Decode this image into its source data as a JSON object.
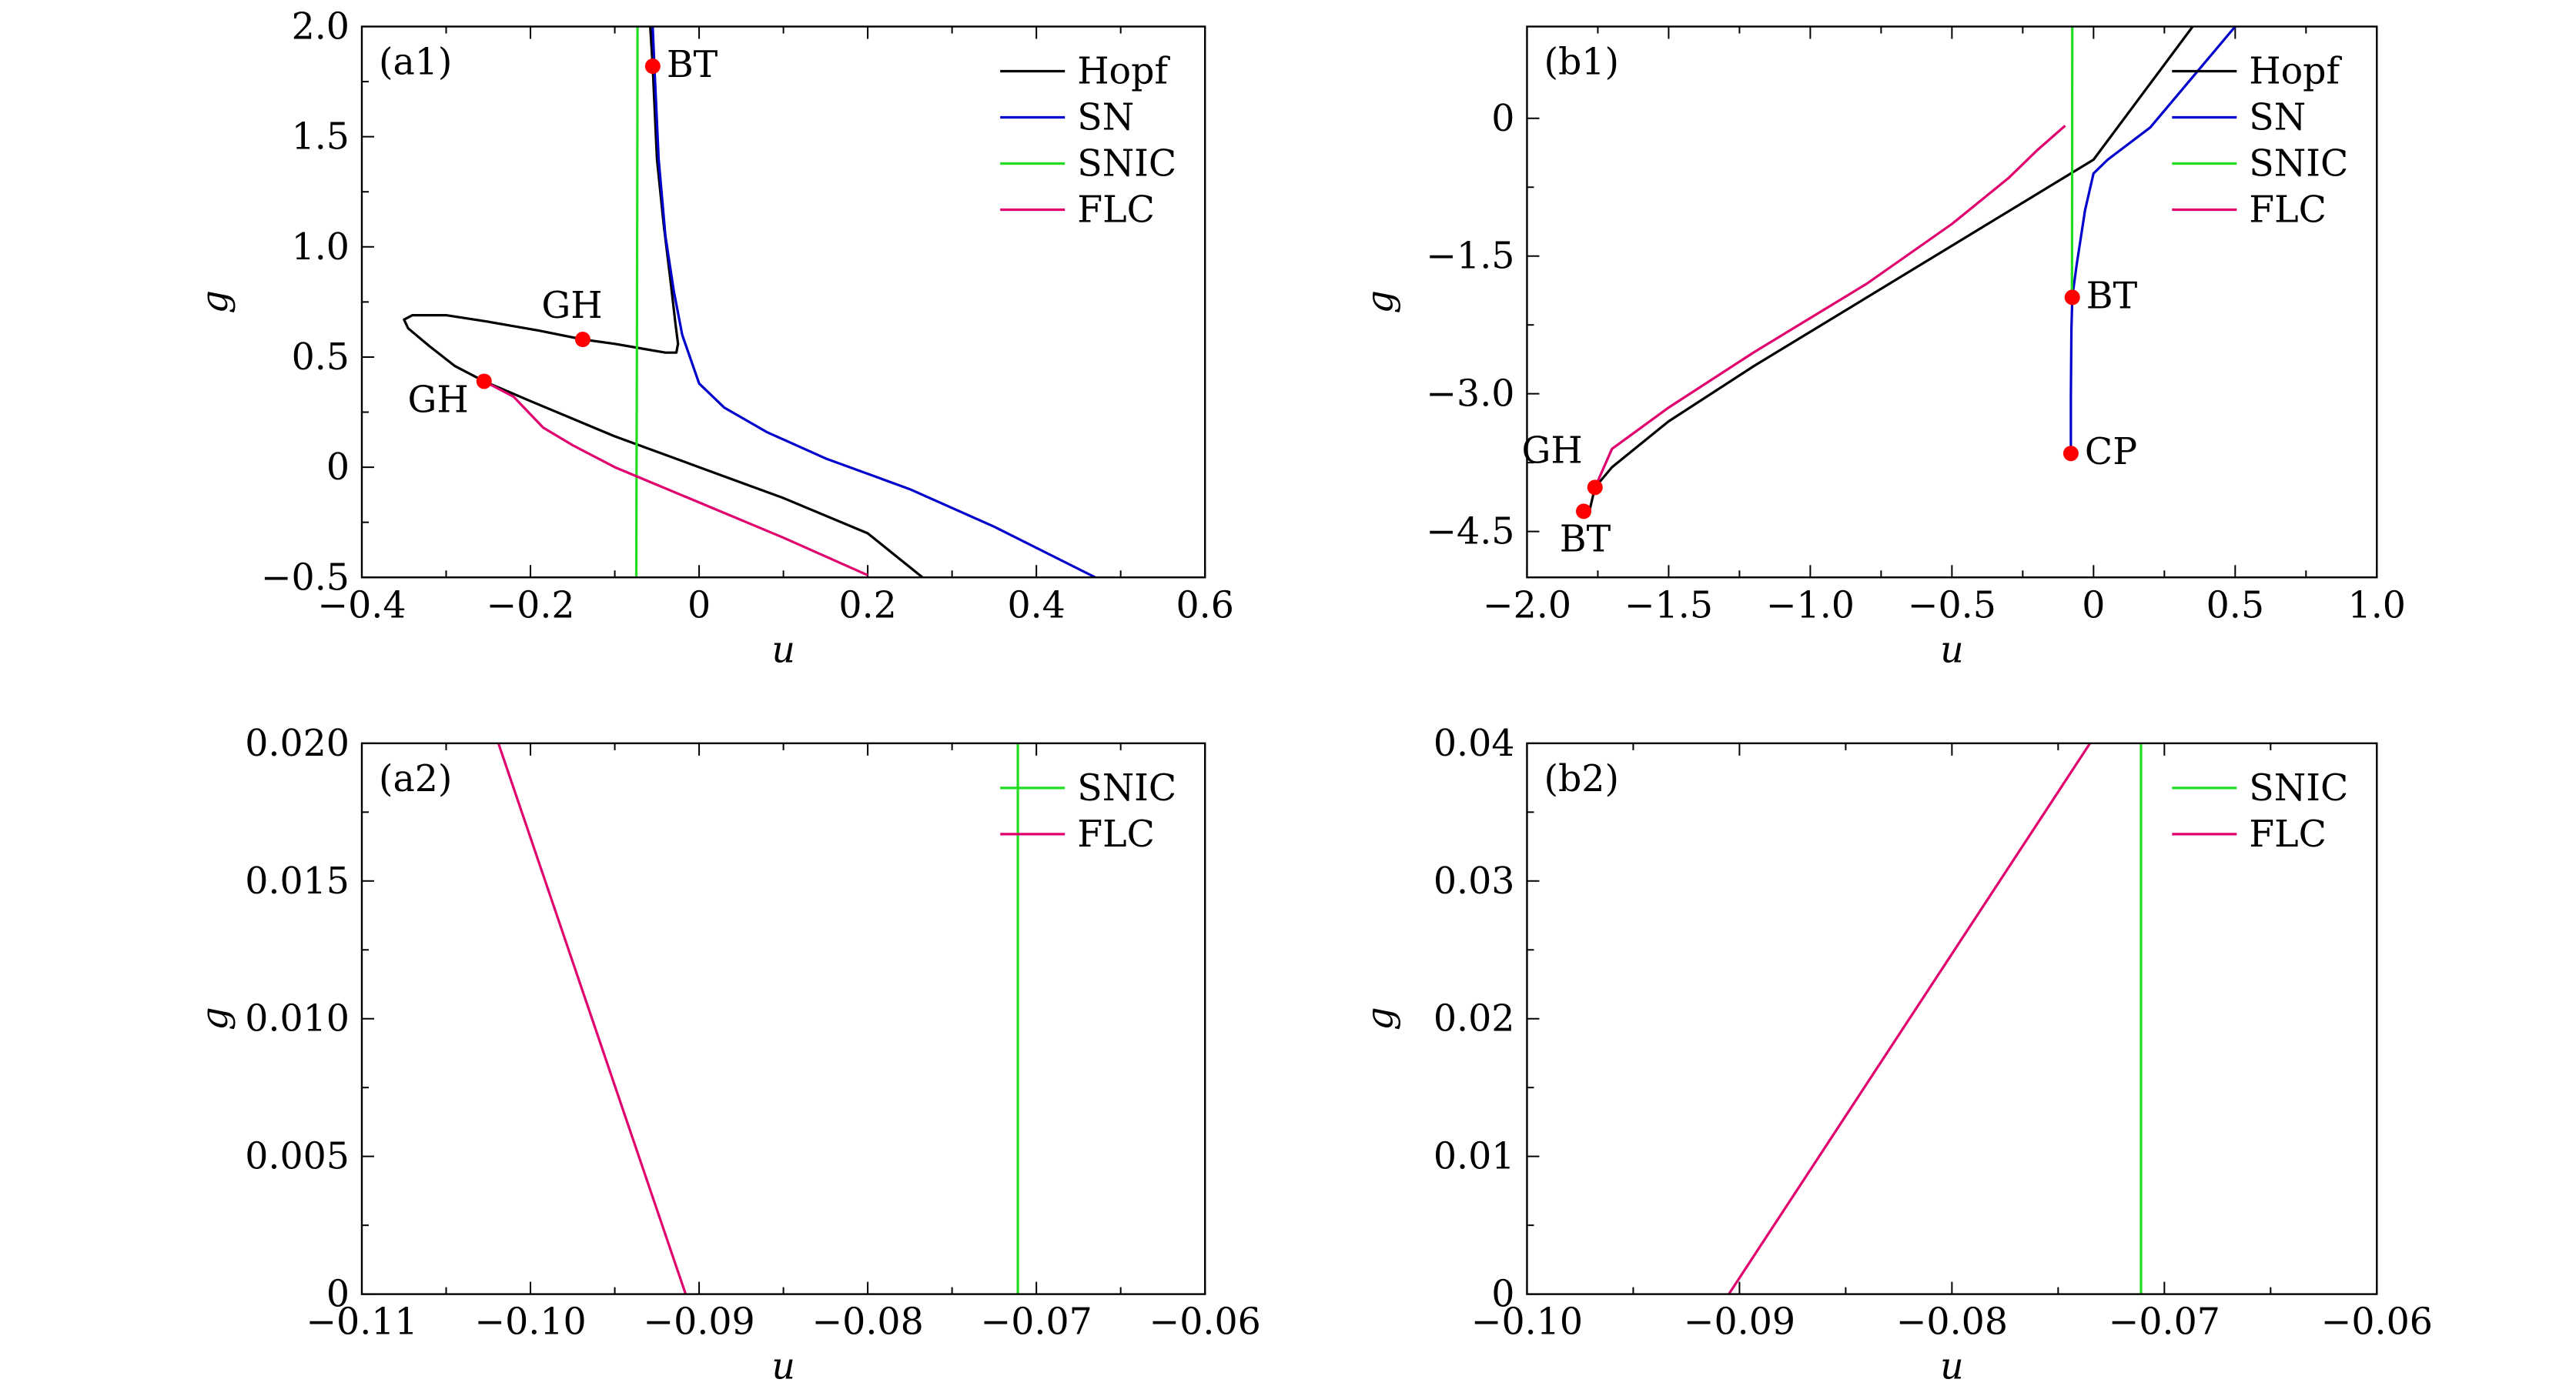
{
  "chart_data": [
    {
      "id": "a1",
      "type": "line",
      "panel_label": "(a1)",
      "xlabel": "u",
      "ylabel": "g",
      "xlim": [
        -0.4,
        0.6
      ],
      "ylim": [
        -0.5,
        2.0
      ],
      "xticks": [
        -0.4,
        -0.2,
        0,
        0.2,
        0.4,
        0.6
      ],
      "xtick_labels": [
        "−0.4",
        "−0.2",
        "0",
        "0.2",
        "0.4",
        "0.6"
      ],
      "yticks": [
        -0.5,
        0,
        0.5,
        1.0,
        1.5,
        2.0
      ],
      "ytick_labels": [
        "−0.5",
        "0",
        "0.5",
        "1.0",
        "1.5",
        "2.0"
      ],
      "legend": [
        "Hopf",
        "SN",
        "SNIC",
        "FLC"
      ],
      "legend_position": "top-right",
      "series": [
        {
          "name": "Hopf",
          "color": "#000000",
          "points": [
            [
              -0.058,
              2.0
            ],
            [
              -0.055,
              1.82
            ],
            [
              -0.05,
              1.4
            ],
            [
              -0.042,
              1.1
            ],
            [
              -0.034,
              0.85
            ],
            [
              -0.028,
              0.65
            ],
            [
              -0.025,
              0.56
            ],
            [
              -0.027,
              0.52
            ],
            [
              -0.04,
              0.52
            ],
            [
              -0.07,
              0.54
            ],
            [
              -0.1,
              0.56
            ],
            [
              -0.138,
              0.58
            ],
            [
              -0.19,
              0.62
            ],
            [
              -0.25,
              0.66
            ],
            [
              -0.3,
              0.69
            ],
            [
              -0.34,
              0.69
            ],
            [
              -0.35,
              0.67
            ],
            [
              -0.345,
              0.63
            ],
            [
              -0.32,
              0.55
            ],
            [
              -0.29,
              0.46
            ],
            [
              -0.255,
              0.39
            ],
            [
              -0.2,
              0.3
            ],
            [
              -0.1,
              0.14
            ],
            [
              0,
              0.0
            ],
            [
              0.1,
              -0.14
            ],
            [
              0.2,
              -0.3
            ],
            [
              0.265,
              -0.5
            ]
          ]
        },
        {
          "name": "SN",
          "color": "#0000cc",
          "points": [
            [
              -0.055,
              2.0
            ],
            [
              -0.053,
              1.82
            ],
            [
              -0.048,
              1.4
            ],
            [
              -0.04,
              1.05
            ],
            [
              -0.03,
              0.8
            ],
            [
              -0.02,
              0.6
            ],
            [
              0,
              0.38
            ],
            [
              0.03,
              0.27
            ],
            [
              0.08,
              0.16
            ],
            [
              0.15,
              0.04
            ],
            [
              0.25,
              -0.1
            ],
            [
              0.35,
              -0.27
            ],
            [
              0.47,
              -0.5
            ]
          ]
        },
        {
          "name": "SNIC",
          "color": "#22dd22",
          "points": [
            [
              -0.073,
              2.0
            ],
            [
              -0.0732,
              1.5
            ],
            [
              -0.0735,
              1.0
            ],
            [
              -0.0738,
              0.5
            ],
            [
              -0.0742,
              0.0
            ],
            [
              -0.0745,
              -0.5
            ]
          ]
        },
        {
          "name": "FLC",
          "color": "#e0006e",
          "points": [
            [
              -0.255,
              0.39
            ],
            [
              -0.22,
              0.32
            ],
            [
              -0.185,
              0.18
            ],
            [
              -0.15,
              0.1
            ],
            [
              -0.1,
              0.0
            ],
            [
              -0.05,
              -0.08
            ],
            [
              0,
              -0.16
            ],
            [
              0.1,
              -0.32
            ],
            [
              0.2,
              -0.49
            ]
          ]
        }
      ],
      "markers": [
        {
          "label": "BT",
          "x": -0.055,
          "y": 1.82,
          "label_side": "right"
        },
        {
          "label": "GH",
          "x": -0.138,
          "y": 0.58,
          "label_side": "above"
        },
        {
          "label": "GH",
          "x": -0.255,
          "y": 0.39,
          "label_side": "below-left"
        }
      ]
    },
    {
      "id": "b1",
      "type": "line",
      "panel_label": "(b1)",
      "xlabel": "u",
      "ylabel": "g",
      "xlim": [
        -2.0,
        1.0
      ],
      "ylim": [
        -5.0,
        1.0
      ],
      "xticks": [
        -2.0,
        -1.5,
        -1.0,
        -0.5,
        0,
        0.5,
        1.0
      ],
      "xtick_labels": [
        "−2.0",
        "−1.5",
        "−1.0",
        "−0.5",
        "0",
        "0.5",
        "1.0"
      ],
      "yticks": [
        -4.5,
        -3.0,
        -1.5,
        0
      ],
      "ytick_labels": [
        "−4.5",
        "−3.0",
        "−1.5",
        "0"
      ],
      "legend": [
        "Hopf",
        "SN",
        "SNIC",
        "FLC"
      ],
      "legend_position": "top-right",
      "series": [
        {
          "name": "Hopf",
          "color": "#000000",
          "points": [
            [
              -1.78,
              -4.28
            ],
            [
              -1.76,
              -4.02
            ],
            [
              -1.7,
              -3.8
            ],
            [
              -1.5,
              -3.3
            ],
            [
              -1.2,
              -2.7
            ],
            [
              -0.8,
              -1.95
            ],
            [
              -0.4,
              -1.2
            ],
            [
              0,
              -0.45
            ],
            [
              0.35,
              1.0
            ]
          ]
        },
        {
          "name": "SN",
          "color": "#0000cc",
          "points": [
            [
              -0.08,
              -3.65
            ],
            [
              -0.08,
              -3.0
            ],
            [
              -0.078,
              -2.3
            ],
            [
              -0.075,
              -1.95
            ],
            [
              -0.06,
              -1.6
            ],
            [
              -0.03,
              -1.0
            ],
            [
              0.0,
              -0.6
            ],
            [
              0.05,
              -0.45
            ],
            [
              0.2,
              -0.1
            ],
            [
              0.5,
              1.0
            ]
          ]
        },
        {
          "name": "SNIC",
          "color": "#22dd22",
          "points": [
            [
              -0.075,
              1.0
            ],
            [
              -0.0755,
              -0.5
            ],
            [
              -0.076,
              -1.5
            ],
            [
              -0.0765,
              -1.95
            ]
          ]
        },
        {
          "name": "FLC",
          "color": "#e0006e",
          "points": [
            [
              -1.76,
              -4.02
            ],
            [
              -1.7,
              -3.6
            ],
            [
              -1.5,
              -3.15
            ],
            [
              -1.2,
              -2.55
            ],
            [
              -0.8,
              -1.8
            ],
            [
              -0.5,
              -1.15
            ],
            [
              -0.3,
              -0.65
            ],
            [
              -0.2,
              -0.35
            ],
            [
              -0.1,
              -0.08
            ]
          ]
        }
      ],
      "markers": [
        {
          "label": "BT",
          "x": -0.075,
          "y": -1.95,
          "label_side": "right"
        },
        {
          "label": "CP",
          "x": -0.08,
          "y": -3.65,
          "label_side": "right"
        },
        {
          "label": "GH",
          "x": -1.76,
          "y": -4.02,
          "label_side": "above-left"
        },
        {
          "label": "BT",
          "x": -1.8,
          "y": -4.28,
          "label_side": "below"
        }
      ]
    },
    {
      "id": "a2",
      "type": "line",
      "panel_label": "(a2)",
      "xlabel": "u",
      "ylabel": "g",
      "xlim": [
        -0.11,
        -0.06
      ],
      "ylim": [
        0,
        0.02
      ],
      "xticks": [
        -0.11,
        -0.1,
        -0.09,
        -0.08,
        -0.07,
        -0.06
      ],
      "xtick_labels": [
        "−0.11",
        "−0.10",
        "−0.09",
        "−0.08",
        "−0.07",
        "−0.06"
      ],
      "yticks": [
        0,
        0.005,
        0.01,
        0.015,
        0.02
      ],
      "ytick_labels": [
        "0",
        "0.005",
        "0.010",
        "0.015",
        "0.020"
      ],
      "legend": [
        "SNIC",
        "FLC"
      ],
      "legend_position": "top-right",
      "series": [
        {
          "name": "SNIC",
          "color": "#22dd22",
          "points": [
            [
              -0.0711,
              0.0
            ],
            [
              -0.0711,
              0.02
            ]
          ]
        },
        {
          "name": "FLC",
          "color": "#e0006e",
          "points": [
            [
              -0.1019,
              0.02
            ],
            [
              -0.0908,
              0.0
            ]
          ]
        }
      ],
      "markers": []
    },
    {
      "id": "b2",
      "type": "line",
      "panel_label": "(b2)",
      "xlabel": "u",
      "ylabel": "g",
      "xlim": [
        -0.1,
        -0.06
      ],
      "ylim": [
        0,
        0.04
      ],
      "xticks": [
        -0.1,
        -0.09,
        -0.08,
        -0.07,
        -0.06
      ],
      "xtick_labels": [
        "−0.10",
        "−0.09",
        "−0.08",
        "−0.07",
        "−0.06"
      ],
      "yticks": [
        0,
        0.01,
        0.02,
        0.03,
        0.04
      ],
      "ytick_labels": [
        "0",
        "0.01",
        "0.02",
        "0.03",
        "0.04"
      ],
      "legend": [
        "SNIC",
        "FLC"
      ],
      "legend_position": "top-right",
      "series": [
        {
          "name": "SNIC",
          "color": "#22dd22",
          "points": [
            [
              -0.0711,
              0.0
            ],
            [
              -0.0711,
              0.04
            ]
          ]
        },
        {
          "name": "FLC",
          "color": "#e0006e",
          "points": [
            [
              -0.0905,
              0.0
            ],
            [
              -0.0735,
              0.04
            ]
          ]
        }
      ],
      "markers": []
    }
  ]
}
